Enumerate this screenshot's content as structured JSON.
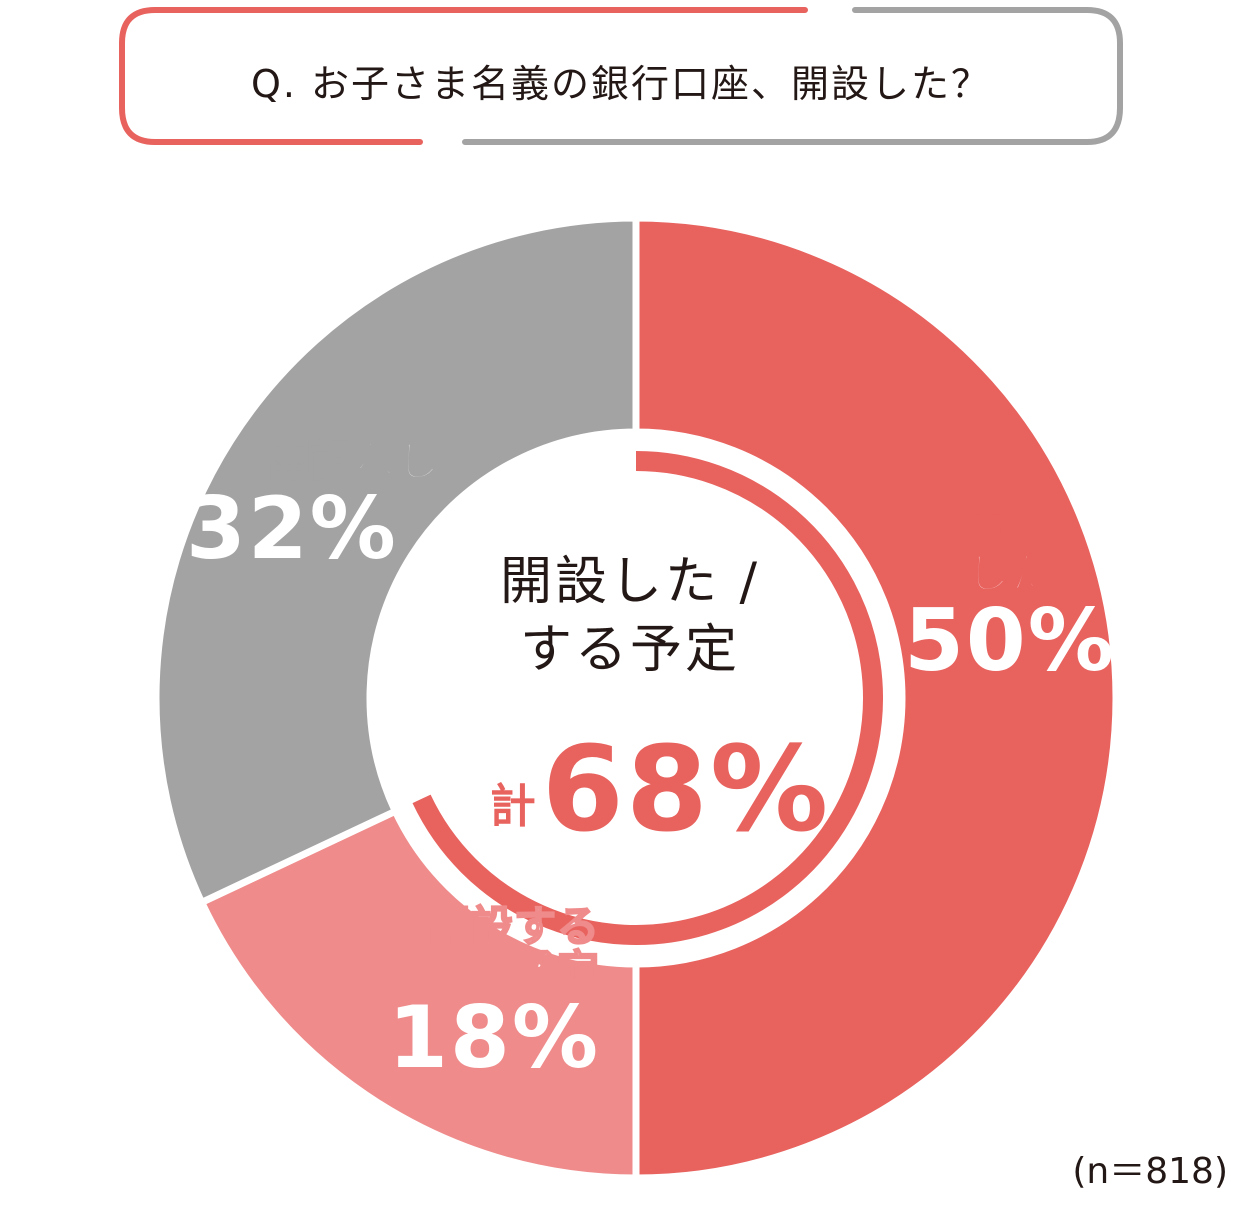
{
  "question": "Q. お子さま名義の銀行口座、開設した？",
  "chart_data": {
    "type": "pie",
    "categories": [
      "開設した",
      "開設する予定",
      "開設なし"
    ],
    "values": [
      50,
      18,
      32
    ],
    "unit": "%",
    "colors": [
      "#e8625e",
      "#ef8b8b",
      "#a3a3a3"
    ],
    "center_label_line1": "開設した /",
    "center_label_line2": "する予定",
    "total_prefix": "計",
    "total_value": "68%",
    "sample_size": "(n＝818)"
  },
  "labels": {
    "done_name_1": "開設",
    "done_name_2": "した",
    "done_value": "50%",
    "planned_name_1": "開設する",
    "planned_name_2": "予定",
    "planned_value": "18%",
    "none_name": "開設なし",
    "none_value": "32%"
  }
}
